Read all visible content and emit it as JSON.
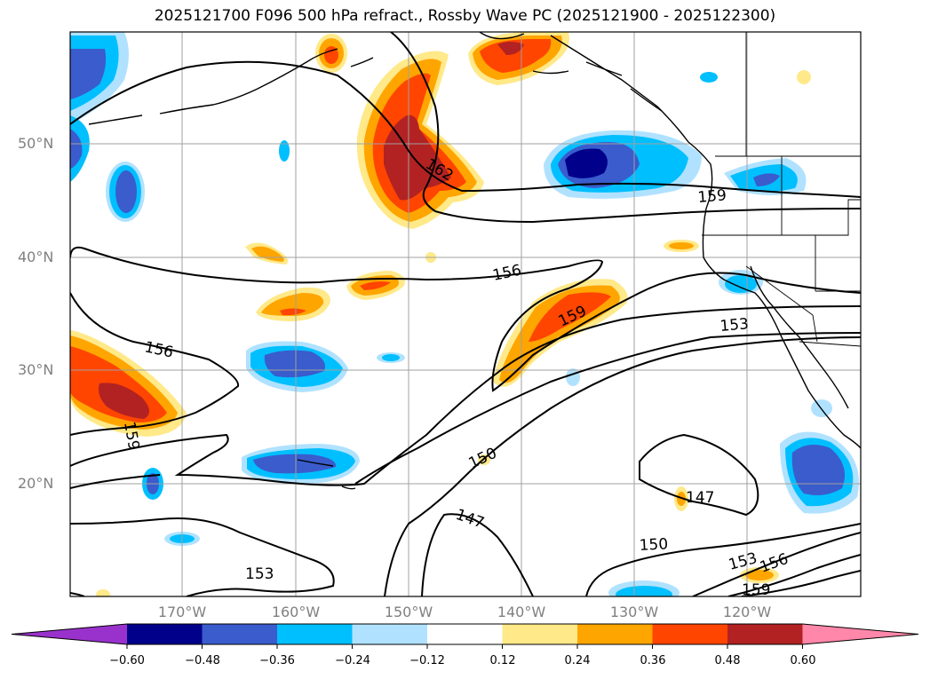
{
  "title": "2025121700 F096 500 hPa refract., Rossby Wave PC (2025121900 - 2025122300)",
  "map": {
    "lat_labels": [
      "50°N",
      "40°N",
      "30°N",
      "20°N"
    ],
    "lon_labels": [
      "170°W",
      "160°W",
      "150°W",
      "140°W",
      "130°W",
      "120°W"
    ],
    "contour_labels": [
      "162",
      "159",
      "156",
      "156",
      "159",
      "153",
      "159",
      "150",
      "147",
      "147",
      "150",
      "153",
      "156",
      "159",
      "153"
    ]
  },
  "colorbar": {
    "ticks": [
      "−0.60",
      "−0.48",
      "−0.36",
      "−0.24",
      "−0.12",
      "0.12",
      "0.24",
      "0.36",
      "0.48",
      "0.60"
    ],
    "colors": [
      "#9932cc",
      "#00008b",
      "#3a5ccc",
      "#00bfff",
      "#b0e2ff",
      "#ffffff",
      "#ffe989",
      "#ffa500",
      "#ff4500",
      "#b22222",
      "#ff88aa"
    ]
  }
}
